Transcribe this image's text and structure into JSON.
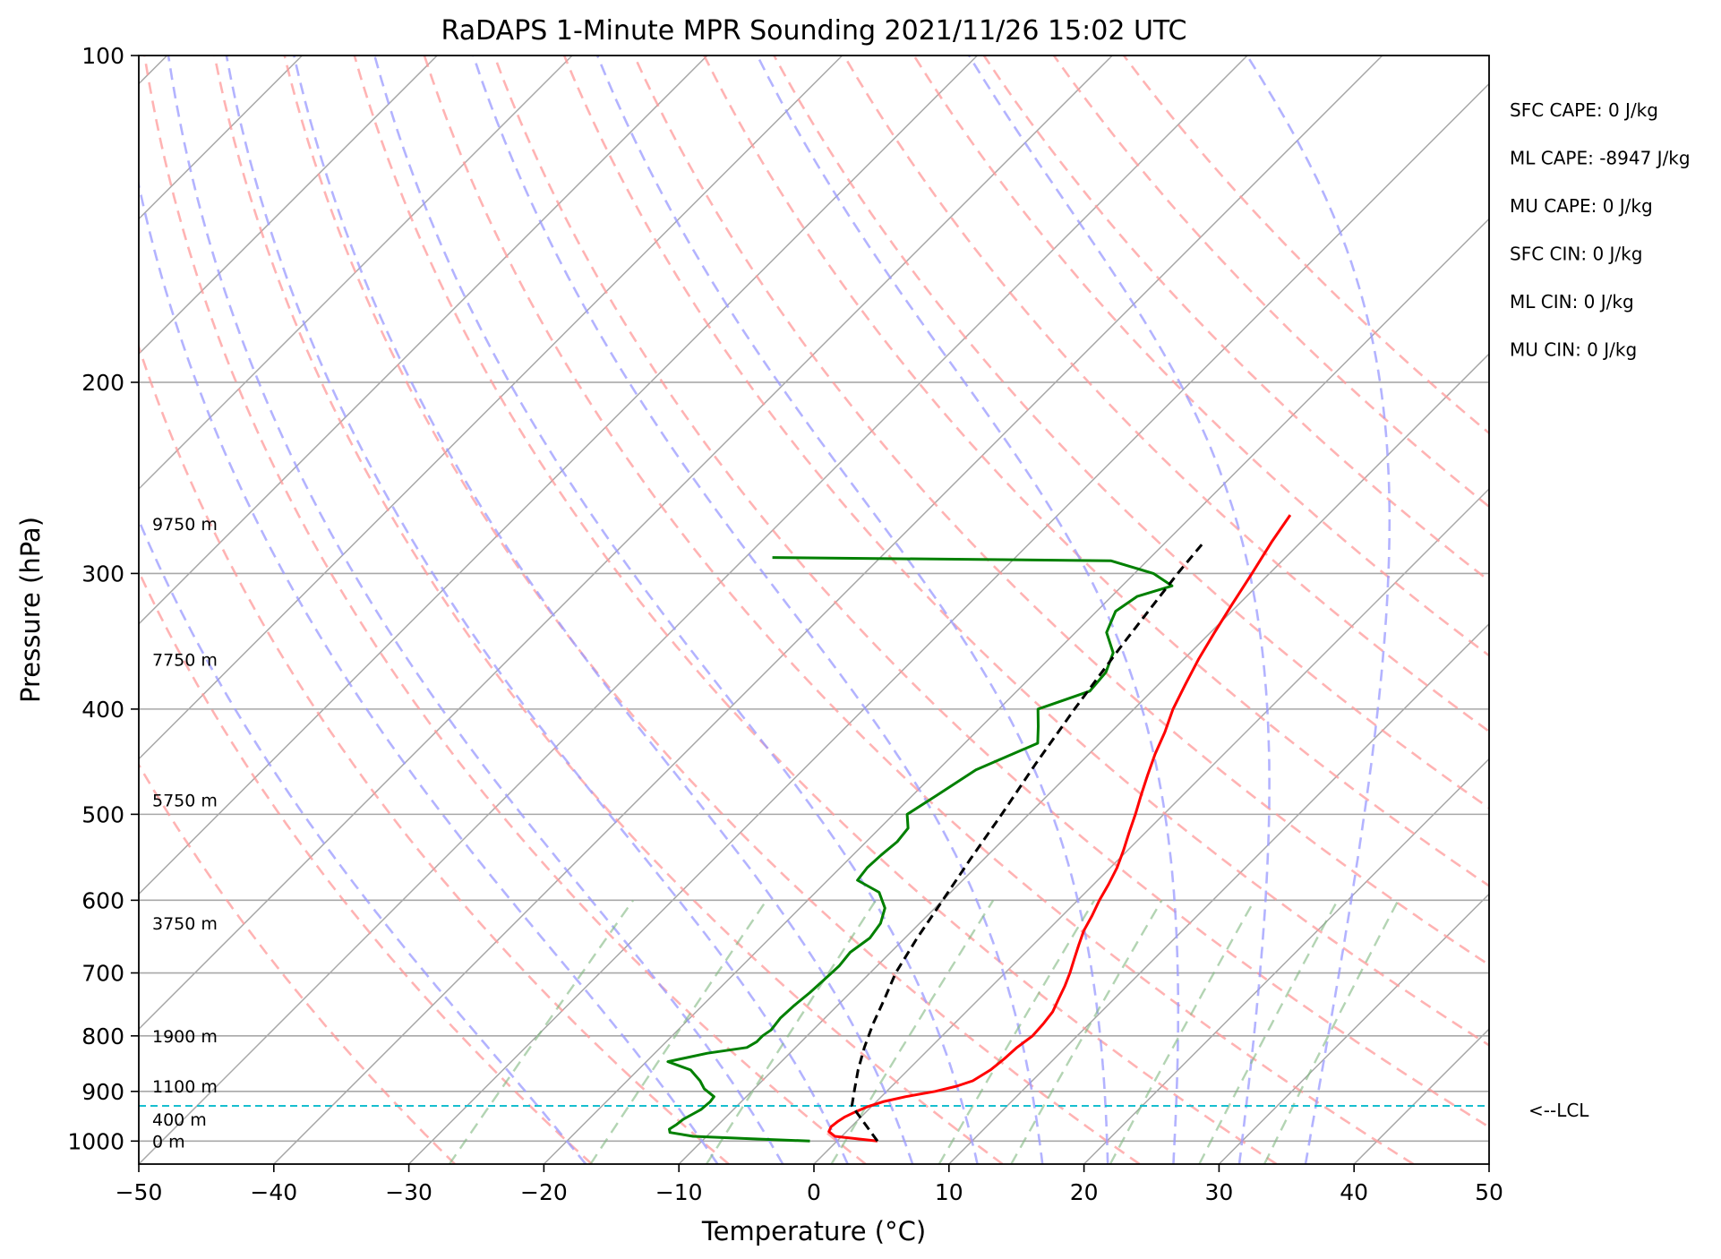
{
  "chart_data": {
    "type": "line",
    "title": "RaDAPS 1-Minute MPR Sounding 2021/11/26 15:02 UTC",
    "xlabel": "Temperature (°C)",
    "ylabel": "Pressure (hPa)",
    "xlim": [
      -50,
      50
    ],
    "ylim": [
      1050,
      100
    ],
    "y_scale": "log",
    "skew_t": true,
    "grid": true,
    "x_ticks": [
      -50,
      -40,
      -30,
      -20,
      -10,
      0,
      10,
      20,
      30,
      40,
      50
    ],
    "x_tick_labels": [
      "−50",
      "−40",
      "−30",
      "−20",
      "−10",
      "0",
      "10",
      "20",
      "30",
      "40",
      "50"
    ],
    "y_ticks": [
      100,
      200,
      300,
      400,
      500,
      600,
      700,
      800,
      900,
      1000
    ],
    "y_tick_labels": [
      "100",
      "200",
      "300",
      "400",
      "500",
      "600",
      "700",
      "800",
      "900",
      "1000"
    ],
    "series": [
      {
        "id": "temperature",
        "color": "#ff0000",
        "points": [
          [
            1000,
            3.0
          ],
          [
            990,
            -0.5
          ],
          [
            980,
            -1.3
          ],
          [
            970,
            -1.5
          ],
          [
            960,
            -1.4
          ],
          [
            950,
            -1.2
          ],
          [
            940,
            -0.8
          ],
          [
            930,
            -0.3
          ],
          [
            920,
            0.5
          ],
          [
            910,
            1.8
          ],
          [
            900,
            3.6
          ],
          [
            890,
            4.8
          ],
          [
            880,
            5.6
          ],
          [
            860,
            6.1
          ],
          [
            840,
            6.3
          ],
          [
            820,
            6.4
          ],
          [
            800,
            6.7
          ],
          [
            780,
            6.6
          ],
          [
            760,
            6.4
          ],
          [
            740,
            5.9
          ],
          [
            720,
            5.4
          ],
          [
            700,
            4.8
          ],
          [
            680,
            4.1
          ],
          [
            660,
            3.4
          ],
          [
            640,
            2.7
          ],
          [
            620,
            2.2
          ],
          [
            600,
            1.6
          ],
          [
            580,
            1.1
          ],
          [
            560,
            0.5
          ],
          [
            540,
            -0.3
          ],
          [
            520,
            -1.2
          ],
          [
            500,
            -2.1
          ],
          [
            480,
            -3.1
          ],
          [
            460,
            -4.1
          ],
          [
            440,
            -5.1
          ],
          [
            420,
            -6.0
          ],
          [
            400,
            -7.1
          ],
          [
            380,
            -8.0
          ],
          [
            360,
            -8.9
          ],
          [
            340,
            -9.7
          ],
          [
            320,
            -10.5
          ],
          [
            300,
            -11.3
          ],
          [
            280,
            -12.2
          ],
          [
            265,
            -12.8
          ]
        ]
      },
      {
        "id": "dewpoint",
        "color": "#008000",
        "points": [
          [
            1000,
            -2.0
          ],
          [
            995,
            -6.5
          ],
          [
            990,
            -11.0
          ],
          [
            982,
            -13.0
          ],
          [
            975,
            -13.3
          ],
          [
            965,
            -13.1
          ],
          [
            955,
            -13.0
          ],
          [
            945,
            -12.7
          ],
          [
            935,
            -12.4
          ],
          [
            920,
            -12.3
          ],
          [
            910,
            -12.4
          ],
          [
            895,
            -13.7
          ],
          [
            880,
            -14.6
          ],
          [
            860,
            -16.1
          ],
          [
            845,
            -18.4
          ],
          [
            830,
            -16.1
          ],
          [
            820,
            -13.6
          ],
          [
            810,
            -13.3
          ],
          [
            800,
            -13.3
          ],
          [
            790,
            -13.1
          ],
          [
            770,
            -13.3
          ],
          [
            750,
            -13.2
          ],
          [
            730,
            -13.0
          ],
          [
            710,
            -12.9
          ],
          [
            690,
            -12.8
          ],
          [
            670,
            -13.0
          ],
          [
            650,
            -12.6
          ],
          [
            630,
            -12.9
          ],
          [
            610,
            -13.7
          ],
          [
            590,
            -15.3
          ],
          [
            575,
            -17.8
          ],
          [
            560,
            -18.0
          ],
          [
            545,
            -17.9
          ],
          [
            530,
            -17.7
          ],
          [
            515,
            -17.9
          ],
          [
            500,
            -19.0
          ],
          [
            480,
            -18.2
          ],
          [
            455,
            -17.2
          ],
          [
            430,
            -14.6
          ],
          [
            415,
            -15.8
          ],
          [
            400,
            -17.1
          ],
          [
            385,
            -14.6
          ],
          [
            370,
            -14.8
          ],
          [
            355,
            -15.7
          ],
          [
            340,
            -17.7
          ],
          [
            325,
            -18.6
          ],
          [
            315,
            -18.1
          ],
          [
            308,
            -16.3
          ],
          [
            300,
            -18.6
          ],
          [
            292,
            -22.7
          ],
          [
            290,
            -48.0
          ]
        ]
      },
      {
        "id": "parcel",
        "color": "#000000",
        "dashed": true,
        "points": [
          [
            1000,
            3.0
          ],
          [
            928,
            -1.5
          ],
          [
            900,
            -2.4
          ],
          [
            860,
            -3.7
          ],
          [
            820,
            -4.9
          ],
          [
            780,
            -6.0
          ],
          [
            740,
            -7.0
          ],
          [
            700,
            -8.1
          ],
          [
            650,
            -9.1
          ],
          [
            600,
            -10.0
          ],
          [
            550,
            -11.0
          ],
          [
            500,
            -12.0
          ],
          [
            450,
            -13.2
          ],
          [
            400,
            -14.4
          ],
          [
            350,
            -15.6
          ],
          [
            300,
            -16.8
          ],
          [
            280,
            -17.2
          ]
        ]
      }
    ],
    "lcl_pressure": 928,
    "lcl_label": "<--LCL",
    "height_labels": [
      {
        "text": "0 m",
        "p": 1000
      },
      {
        "text": "400 m",
        "p": 955
      },
      {
        "text": "1100 m",
        "p": 890
      },
      {
        "text": "1900 m",
        "p": 800
      },
      {
        "text": "3750 m",
        "p": 630
      },
      {
        "text": "5750 m",
        "p": 485
      },
      {
        "text": "7750 m",
        "p": 360
      },
      {
        "text": "9750 m",
        "p": 270
      }
    ],
    "indices": [
      "SFC CAPE: 0 J/kg",
      "ML CAPE: -8947 J/kg",
      "MU CAPE: 0 J/kg",
      "SFC CIN: 0 J/kg",
      "ML CIN: 0 J/kg",
      "MU CIN: 0 J/kg"
    ],
    "dry_adiabat_theta_c": [
      -30,
      -20,
      -10,
      0,
      10,
      20,
      30,
      40,
      50,
      60,
      70,
      80,
      90,
      100,
      110,
      120,
      130,
      140
    ],
    "moist_adiabat_t1000_c": [
      -20,
      -10,
      -5,
      0,
      5,
      10,
      15,
      20,
      25,
      30,
      35
    ],
    "mixing_ratio_g_per_kg": [
      0.4,
      1,
      2,
      4,
      7,
      10,
      16,
      24,
      32
    ],
    "colors": {
      "isotherm": "#a8a8a8",
      "isobar": "#a8a8a8",
      "dry_adiabat": "#ff9999",
      "moist_adiabat": "#9999ff",
      "mixing_ratio": "#80b880",
      "lcl": "#17becf"
    }
  }
}
